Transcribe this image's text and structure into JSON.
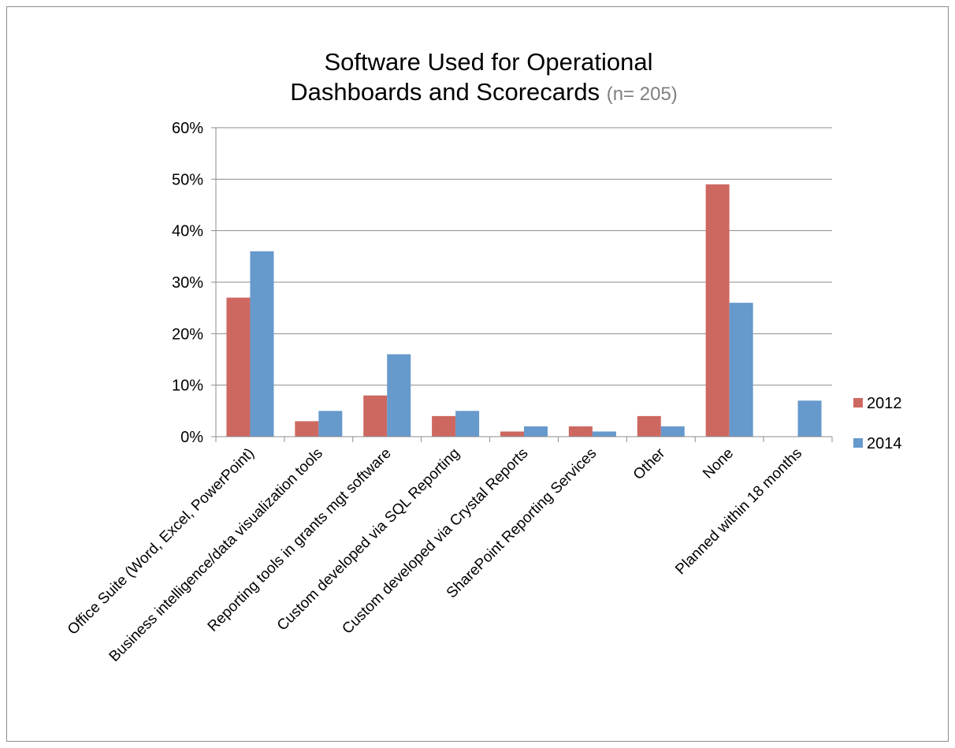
{
  "chart_data": {
    "type": "bar",
    "title": {
      "line1": "Software Used for Operational",
      "line2": "Dashboards and Scorecards",
      "note": "(n= 205)"
    },
    "categories": [
      "Office Suite (Word, Excel, PowerPoint)",
      "Business intelligence/data visualization tools",
      "Reporting tools in grants mgt software",
      "Custom developed via SQL Reporting",
      "Custom developed via Crystal Reports",
      "SharePoint Reporting Services",
      "Other",
      "None",
      "Planned within 18 months"
    ],
    "series": [
      {
        "name": "2012",
        "color": "#cd6860",
        "values": [
          27,
          3,
          8,
          4,
          1,
          2,
          4,
          49,
          0
        ]
      },
      {
        "name": "2014",
        "color": "#6699cc",
        "values": [
          36,
          5,
          16,
          5,
          2,
          1,
          2,
          26,
          7
        ]
      }
    ],
    "y_ticks": [
      "0%",
      "10%",
      "20%",
      "30%",
      "40%",
      "50%",
      "60%"
    ],
    "ylim": [
      0,
      60
    ],
    "ylabel": "",
    "xlabel": "",
    "grid": true,
    "legend_position": "right"
  }
}
